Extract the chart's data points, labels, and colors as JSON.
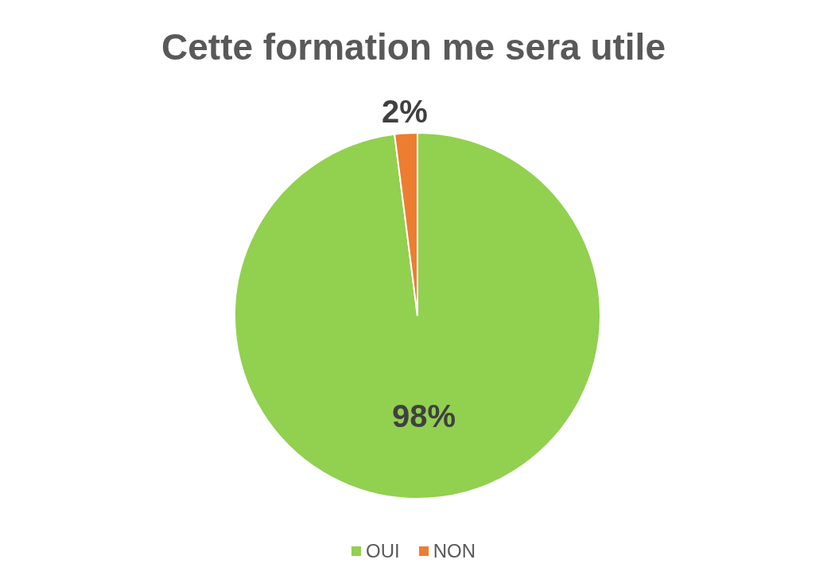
{
  "chart_data": {
    "type": "pie",
    "title": "Cette formation me sera utile",
    "categories": [
      "OUI",
      "NON"
    ],
    "values": [
      98,
      2
    ],
    "colors": [
      "#92d050",
      "#ed7d31"
    ],
    "value_labels": [
      "98%",
      "2%"
    ],
    "legend": "bottom"
  }
}
